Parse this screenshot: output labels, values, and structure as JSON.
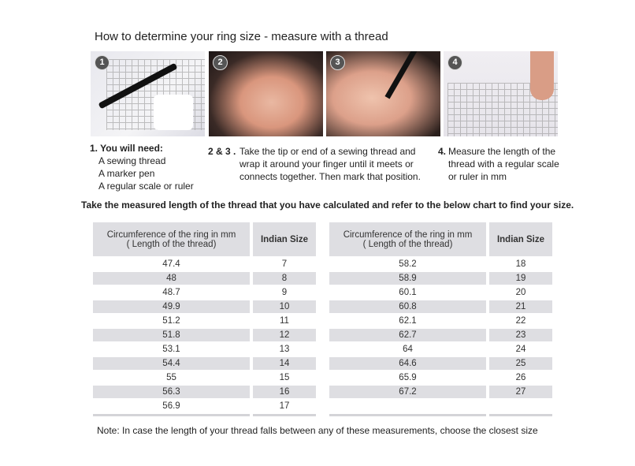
{
  "title": "How to determine your ring size - measure with a thread",
  "photos": [
    {
      "badge": "1"
    },
    {
      "badge": "2"
    },
    {
      "badge": "3"
    },
    {
      "badge": "4"
    }
  ],
  "steps": {
    "s1": {
      "head": "1. You will need:",
      "lines": [
        "A sewing thread",
        "A marker pen",
        "A regular scale or ruler"
      ]
    },
    "s23": {
      "head": "2 & 3 .",
      "lines": [
        "Take the tip or end of a sewing thread and",
        "wrap it around your finger until it meets or",
        "connects together. Then mark that position."
      ]
    },
    "s4": {
      "head": "4.",
      "lines": [
        "Measure the length of the",
        "thread with a regular scale",
        "or ruler in mm"
      ]
    }
  },
  "instruction": "Take the measured length of the thread that you have calculated and refer to the below chart to find your size.",
  "table": {
    "header_circ": "Circumference of the ring in mm",
    "header_circ_sub": "( Length of the thread)",
    "header_size": "Indian Size",
    "left": [
      [
        "47.4",
        "7"
      ],
      [
        "48",
        "8"
      ],
      [
        "48.7",
        "9"
      ],
      [
        "49.9",
        "10"
      ],
      [
        "51.2",
        "11"
      ],
      [
        "51.8",
        "12"
      ],
      [
        "53.1",
        "13"
      ],
      [
        "54.4",
        "14"
      ],
      [
        "55",
        "15"
      ],
      [
        "56.3",
        "16"
      ],
      [
        "56.9",
        "17"
      ]
    ],
    "right": [
      [
        "58.2",
        "18"
      ],
      [
        "58.9",
        "19"
      ],
      [
        "60.1",
        "20"
      ],
      [
        "60.8",
        "21"
      ],
      [
        "62.1",
        "22"
      ],
      [
        "62.7",
        "23"
      ],
      [
        "64",
        "24"
      ],
      [
        "64.6",
        "25"
      ],
      [
        "65.9",
        "26"
      ],
      [
        "67.2",
        "27"
      ]
    ]
  },
  "note": "Note: In case the length of your thread falls between any of these measurements, choose the closest size"
}
